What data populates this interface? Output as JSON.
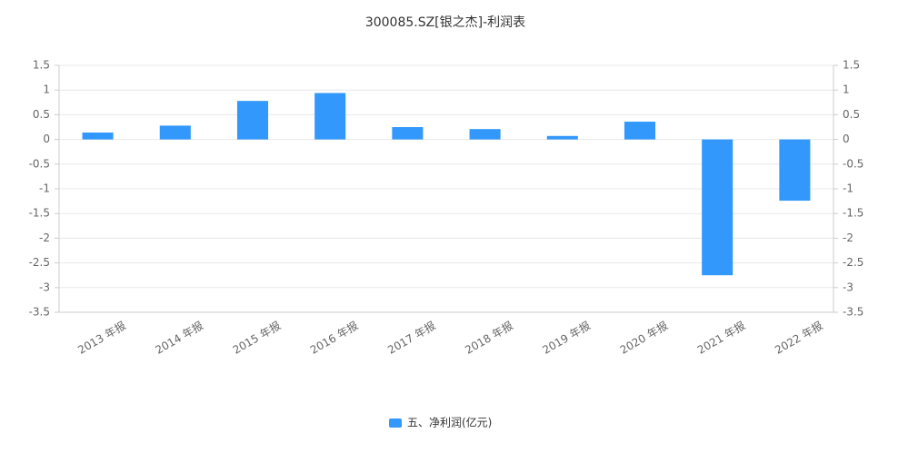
{
  "chart_data": {
    "type": "bar",
    "title": "300085.SZ[银之杰]-利润表",
    "categories": [
      "2013 年报",
      "2014 年报",
      "2015 年报",
      "2016 年报",
      "2017 年报",
      "2018 年报",
      "2019 年报",
      "2020 年报",
      "2021 年报",
      "2022 年报"
    ],
    "series": [
      {
        "name": "五、净利润(亿元)",
        "color": "#3398fb",
        "values": [
          0.14,
          0.28,
          0.78,
          0.94,
          0.25,
          0.21,
          0.07,
          0.36,
          -2.75,
          -1.24
        ]
      }
    ],
    "ylim": [
      -3.5,
      1.5
    ],
    "yticks": [
      -3.5,
      -3,
      -2.5,
      -2,
      -1.5,
      -1,
      -0.5,
      0,
      0.5,
      1,
      1.5
    ],
    "y2lim": [
      -3.5,
      1.5
    ],
    "y2ticks": [
      -3.5,
      -3,
      -2.5,
      -2,
      -1.5,
      -1,
      -0.5,
      0,
      0.5,
      1,
      1.5
    ],
    "grid": true,
    "legend": "bottom"
  }
}
